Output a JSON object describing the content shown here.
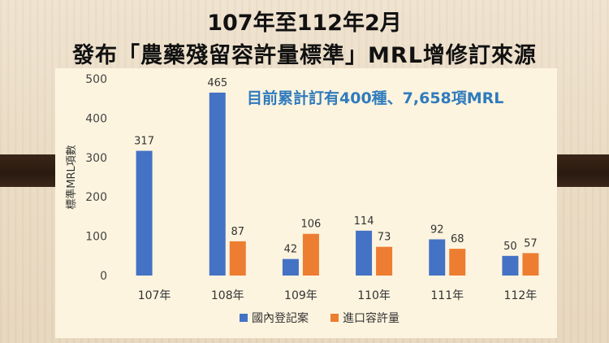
{
  "title": {
    "line1": "107年至112年2月",
    "line2": "發布「農藥殘留容許量標準」MRL增修訂來源"
  },
  "note": "目前累計訂有400種、7,658項MRL",
  "chart_data": {
    "type": "bar",
    "categories": [
      "107年",
      "108年",
      "109年",
      "110年",
      "111年",
      "112年"
    ],
    "series": [
      {
        "name": "國內登記案",
        "color": "#4472c4",
        "values": [
          317,
          465,
          42,
          114,
          92,
          50
        ]
      },
      {
        "name": "進口容許量",
        "color": "#ed7d31",
        "values": [
          null,
          87,
          106,
          73,
          68,
          57
        ]
      }
    ],
    "ylabel": "標準MRL項數",
    "ylim": [
      0,
      500
    ],
    "yticks": [
      0,
      100,
      200,
      300,
      400,
      500
    ],
    "legend_position": "bottom",
    "grid": false
  }
}
